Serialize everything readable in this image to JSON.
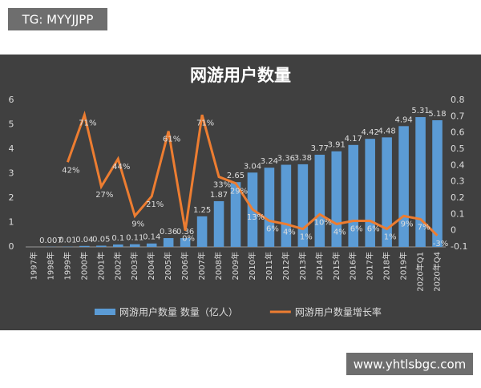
{
  "watermarks": [
    "TG: MYYJJPP",
    "www.yhtlsbgc.com"
  ],
  "chart_data": {
    "type": "bar-line",
    "title": "网游用户数量",
    "categories": [
      "1997年",
      "1998年",
      "1999年",
      "2000年",
      "2001年",
      "2002年",
      "2003年",
      "2004年",
      "2005年",
      "2006年",
      "2007年",
      "2008年",
      "2009年",
      "2010年",
      "2011年",
      "2012年",
      "2013年",
      "2014年",
      "2015年",
      "2016年",
      "2017年",
      "2018年",
      "2019年",
      "2020年Q1",
      "2020年Q4"
    ],
    "series": [
      {
        "name": "网游用户数量 数量（亿人）",
        "type": "bar",
        "color": "#5b9bd5",
        "values": [
          null,
          0.007,
          0.01,
          0.04,
          0.05,
          0.1,
          0.11,
          0.14,
          0.36,
          0.36,
          1.25,
          1.87,
          2.65,
          3.04,
          3.24,
          3.36,
          3.38,
          3.77,
          3.91,
          4.17,
          4.42,
          4.48,
          4.94,
          5.31,
          5.18
        ]
      },
      {
        "name": "网游用户数量增长率",
        "type": "line",
        "axis": "y2",
        "color": "#ed7d31",
        "values": [
          null,
          null,
          0.42,
          0.71,
          0.27,
          0.44,
          0.09,
          0.21,
          0.61,
          0,
          0.71,
          0.33,
          0.29,
          0.13,
          0.06,
          0.04,
          0.01,
          0.1,
          0.04,
          0.06,
          0.06,
          0.01,
          0.09,
          0.07,
          -0.03
        ],
        "value_labels": [
          null,
          null,
          "42%",
          "71%",
          "27%",
          "44%",
          "9%",
          "21%",
          "61%",
          "0%",
          "71%",
          "33%",
          "29%",
          "13%",
          "6%",
          "4%",
          "1%",
          "10%",
          "4%",
          "6%",
          "6%",
          "1%",
          "9%",
          "7%",
          "-3%"
        ]
      }
    ],
    "ylim": [
      0,
      6
    ],
    "yticks": [
      0,
      1,
      2,
      3,
      4,
      5,
      6
    ],
    "y2lim": [
      -0.1,
      0.8
    ],
    "y2ticks": [
      -0.1,
      0,
      0.1,
      0.2,
      0.3,
      0.4,
      0.5,
      0.6,
      0.7,
      0.8
    ],
    "legend": "bottom"
  }
}
